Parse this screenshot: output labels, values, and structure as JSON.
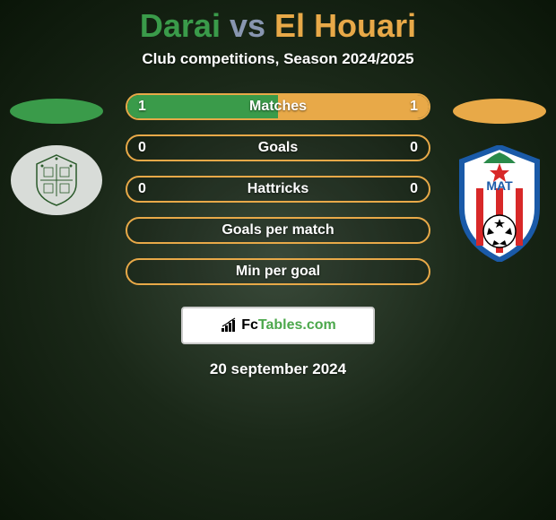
{
  "title": {
    "player_a": "Darai",
    "vs": "vs",
    "player_b": "El Houari",
    "player_a_color": "#3a9b4a",
    "player_b_color": "#e8a948",
    "vs_color": "#8896b0"
  },
  "subtitle": "Club competitions, Season 2024/2025",
  "stats": [
    {
      "label": "Matches",
      "left_val": "1",
      "right_val": "1",
      "left_pct": 50,
      "right_pct": 50,
      "left_bar_color": "#3a9b4a",
      "right_bar_color": "#e8a948",
      "border_color": "#e8a948"
    },
    {
      "label": "Goals",
      "left_val": "0",
      "right_val": "0",
      "left_pct": 0,
      "right_pct": 0,
      "left_bar_color": "#3a9b4a",
      "right_bar_color": "#e8a948",
      "border_color": "#e8a948"
    },
    {
      "label": "Hattricks",
      "left_val": "0",
      "right_val": "0",
      "left_pct": 0,
      "right_pct": 0,
      "left_bar_color": "#3a9b4a",
      "right_bar_color": "#e8a948",
      "border_color": "#e8a948"
    },
    {
      "label": "Goals per match",
      "left_val": "",
      "right_val": "",
      "left_pct": 0,
      "right_pct": 0,
      "left_bar_color": "#3a9b4a",
      "right_bar_color": "#e8a948",
      "border_color": "#e8a948"
    },
    {
      "label": "Min per goal",
      "left_val": "",
      "right_val": "",
      "left_pct": 0,
      "right_pct": 0,
      "left_bar_color": "#3a9b4a",
      "right_bar_color": "#e8a948",
      "border_color": "#e8a948"
    }
  ],
  "footer": {
    "brand_prefix": "Fc",
    "brand_suffix": "Tables.com",
    "date": "20 september 2024"
  },
  "logos": {
    "left": {
      "shield_stroke": "#2a5a2a",
      "shield_fill": "#d8dcd8"
    },
    "right": {
      "outer_stroke": "#1a5aa8",
      "outer_fill": "#ffffff",
      "stripe_red": "#d82828",
      "star_fill": "#d82828",
      "top_green": "#2a8a4a"
    }
  },
  "colors": {
    "ellipse_left": "#3a9b4a",
    "ellipse_right": "#e8a948",
    "text_white": "#ffffff"
  }
}
